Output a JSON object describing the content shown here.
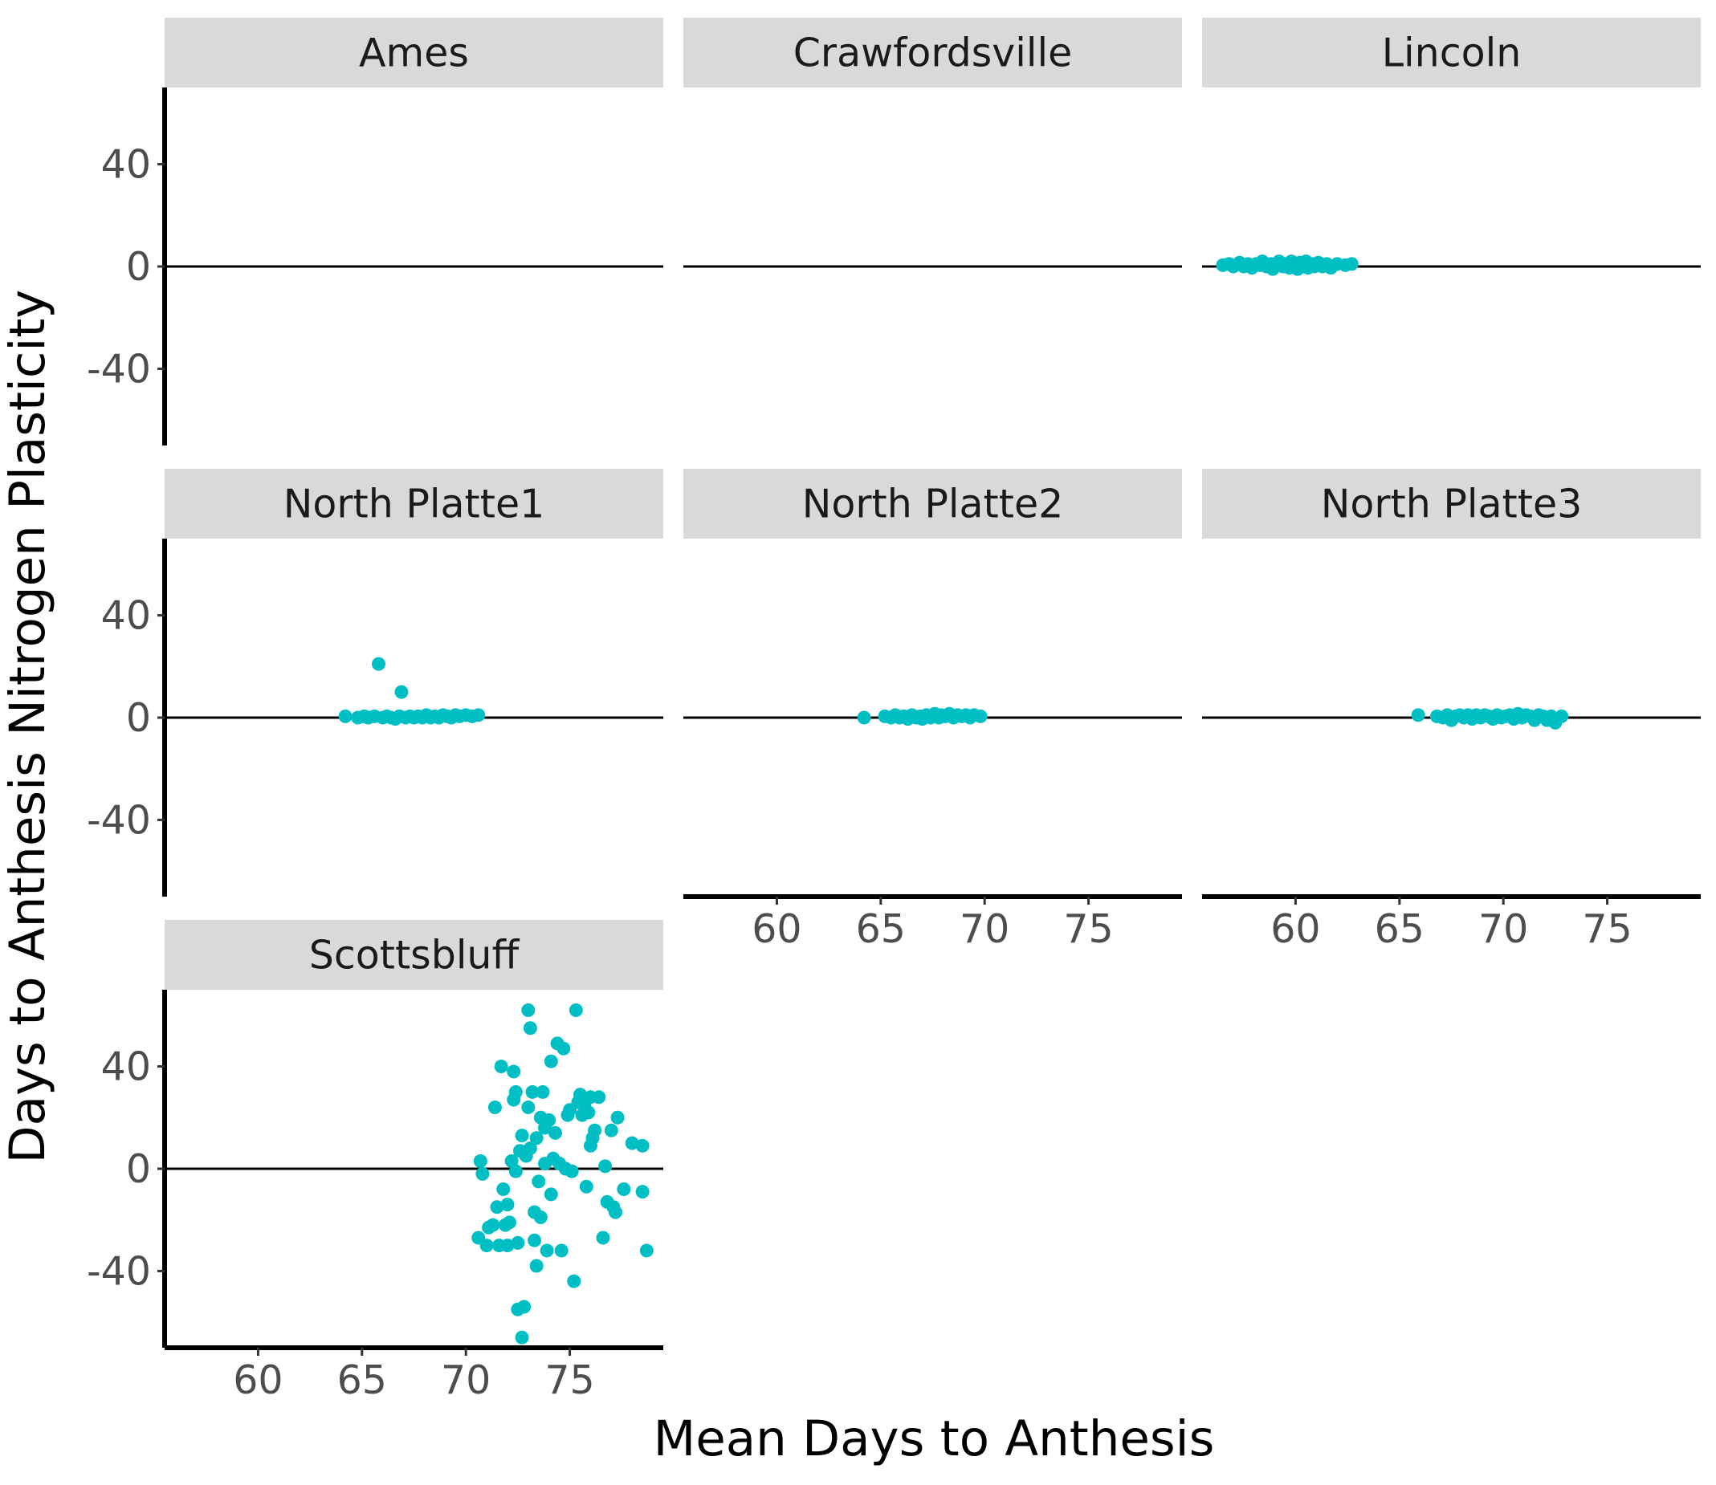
{
  "chart_data": {
    "type": "scatter",
    "facet_layout": "wrap",
    "xlabel": "Mean Days to Anthesis",
    "ylabel": "Days to Anthesis Nitrogen Plasticity",
    "xlim": [
      55.5,
      79.5
    ],
    "ylim": [
      -70,
      70
    ],
    "x_ticks": [
      60,
      65,
      70,
      75
    ],
    "y_ticks": [
      -40,
      0,
      40
    ],
    "reference_line_y": 0,
    "grid": false,
    "legend": "none",
    "point_color": "#00BFC4",
    "panels": [
      {
        "title": "Ames",
        "points": []
      },
      {
        "title": "Crawfordsville",
        "points": []
      },
      {
        "title": "Lincoln",
        "points": [
          [
            56.5,
            0.5
          ],
          [
            56.8,
            1
          ],
          [
            57.0,
            0
          ],
          [
            57.3,
            1.5
          ],
          [
            57.5,
            0
          ],
          [
            57.7,
            1
          ],
          [
            57.9,
            -0.5
          ],
          [
            58.1,
            1
          ],
          [
            58.3,
            0.5
          ],
          [
            58.4,
            2
          ],
          [
            58.6,
            0
          ],
          [
            58.8,
            1
          ],
          [
            58.9,
            -1
          ],
          [
            59.1,
            0.5
          ],
          [
            59.2,
            2
          ],
          [
            59.4,
            0
          ],
          [
            59.5,
            1
          ],
          [
            59.7,
            -0.5
          ],
          [
            59.8,
            2
          ],
          [
            60.0,
            0.5
          ],
          [
            60.1,
            -1
          ],
          [
            60.2,
            1.5
          ],
          [
            60.4,
            0
          ],
          [
            60.5,
            2
          ],
          [
            60.6,
            -0.5
          ],
          [
            60.8,
            1
          ],
          [
            60.9,
            0
          ],
          [
            61.1,
            1.5
          ],
          [
            61.3,
            0
          ],
          [
            61.5,
            1
          ],
          [
            61.7,
            -0.5
          ],
          [
            62.0,
            1
          ],
          [
            62.4,
            0.5
          ],
          [
            62.7,
            1
          ]
        ]
      },
      {
        "title": "North Platte1",
        "points": [
          [
            64.2,
            0.5
          ],
          [
            64.8,
            0
          ],
          [
            65.1,
            0.5
          ],
          [
            65.3,
            0
          ],
          [
            65.6,
            0.5
          ],
          [
            65.8,
            21
          ],
          [
            66.0,
            0
          ],
          [
            66.2,
            0.5
          ],
          [
            66.4,
            0
          ],
          [
            66.6,
            -0.5
          ],
          [
            66.8,
            0.5
          ],
          [
            66.9,
            10
          ],
          [
            67.1,
            0
          ],
          [
            67.3,
            0.5
          ],
          [
            67.5,
            0
          ],
          [
            67.7,
            0.5
          ],
          [
            67.9,
            0
          ],
          [
            68.1,
            1
          ],
          [
            68.3,
            0
          ],
          [
            68.5,
            0.5
          ],
          [
            68.7,
            0
          ],
          [
            68.9,
            1
          ],
          [
            69.1,
            0.5
          ],
          [
            69.3,
            0
          ],
          [
            69.5,
            1
          ],
          [
            69.7,
            0.5
          ],
          [
            70.0,
            1
          ],
          [
            70.3,
            0.5
          ],
          [
            70.6,
            1
          ]
        ]
      },
      {
        "title": "North Platte2",
        "points": [
          [
            64.2,
            0
          ],
          [
            65.2,
            0.5
          ],
          [
            65.5,
            0
          ],
          [
            65.7,
            1
          ],
          [
            65.9,
            0
          ],
          [
            66.1,
            0.5
          ],
          [
            66.3,
            -0.5
          ],
          [
            66.5,
            1
          ],
          [
            66.7,
            0
          ],
          [
            66.9,
            0.5
          ],
          [
            67.0,
            -0.5
          ],
          [
            67.2,
            1
          ],
          [
            67.4,
            0
          ],
          [
            67.6,
            1.5
          ],
          [
            67.8,
            0
          ],
          [
            67.9,
            1
          ],
          [
            68.1,
            0.5
          ],
          [
            68.3,
            1.5
          ],
          [
            68.5,
            0
          ],
          [
            68.7,
            1
          ],
          [
            68.9,
            0.5
          ],
          [
            69.1,
            1
          ],
          [
            69.3,
            0
          ],
          [
            69.5,
            1
          ],
          [
            69.8,
            0.5
          ]
        ]
      },
      {
        "title": "North Platte3",
        "points": [
          [
            65.9,
            1
          ],
          [
            66.8,
            0.5
          ],
          [
            67.1,
            0
          ],
          [
            67.3,
            1
          ],
          [
            67.5,
            -1
          ],
          [
            67.7,
            0.5
          ],
          [
            67.9,
            1
          ],
          [
            68.1,
            0
          ],
          [
            68.3,
            1
          ],
          [
            68.5,
            -0.5
          ],
          [
            68.7,
            1
          ],
          [
            68.9,
            0
          ],
          [
            69.1,
            1
          ],
          [
            69.3,
            0.5
          ],
          [
            69.5,
            -0.5
          ],
          [
            69.7,
            1
          ],
          [
            69.9,
            0
          ],
          [
            70.1,
            0.5
          ],
          [
            70.3,
            1
          ],
          [
            70.5,
            -0.5
          ],
          [
            70.7,
            1.5
          ],
          [
            70.9,
            0
          ],
          [
            71.1,
            1
          ],
          [
            71.3,
            0.5
          ],
          [
            71.5,
            -1
          ],
          [
            71.7,
            1
          ],
          [
            71.9,
            0.5
          ],
          [
            72.1,
            -1
          ],
          [
            72.3,
            0.5
          ],
          [
            72.5,
            -2
          ],
          [
            72.8,
            0.5
          ]
        ]
      },
      {
        "title": "Scottsbluff",
        "points": [
          [
            70.6,
            -27
          ],
          [
            70.7,
            3
          ],
          [
            70.8,
            -2
          ],
          [
            71.0,
            -30
          ],
          [
            71.1,
            -23
          ],
          [
            71.3,
            -22
          ],
          [
            71.4,
            24
          ],
          [
            71.5,
            -15
          ],
          [
            71.6,
            -30
          ],
          [
            71.7,
            40
          ],
          [
            71.8,
            -8
          ],
          [
            71.9,
            -22
          ],
          [
            72.0,
            -14
          ],
          [
            72.0,
            -30
          ],
          [
            72.1,
            -21
          ],
          [
            72.2,
            3
          ],
          [
            72.3,
            27
          ],
          [
            72.3,
            38
          ],
          [
            72.4,
            30
          ],
          [
            72.4,
            -1
          ],
          [
            72.5,
            -29
          ],
          [
            72.5,
            -55
          ],
          [
            72.6,
            7
          ],
          [
            72.7,
            -66
          ],
          [
            72.7,
            13
          ],
          [
            72.8,
            -54
          ],
          [
            72.9,
            5
          ],
          [
            73.0,
            24
          ],
          [
            73.0,
            62
          ],
          [
            73.1,
            55
          ],
          [
            73.1,
            8
          ],
          [
            73.2,
            30
          ],
          [
            73.3,
            -17
          ],
          [
            73.3,
            -28
          ],
          [
            73.4,
            -38
          ],
          [
            73.4,
            12
          ],
          [
            73.5,
            -5
          ],
          [
            73.6,
            20
          ],
          [
            73.6,
            -19
          ],
          [
            73.7,
            30
          ],
          [
            73.8,
            16
          ],
          [
            73.8,
            2
          ],
          [
            73.9,
            -32
          ],
          [
            74.0,
            19
          ],
          [
            74.1,
            -10
          ],
          [
            74.1,
            42
          ],
          [
            74.2,
            4
          ],
          [
            74.3,
            14
          ],
          [
            74.4,
            49
          ],
          [
            74.5,
            2
          ],
          [
            74.6,
            -32
          ],
          [
            74.7,
            47
          ],
          [
            74.8,
            0
          ],
          [
            74.9,
            21
          ],
          [
            75.0,
            23
          ],
          [
            75.1,
            -1
          ],
          [
            75.2,
            -44
          ],
          [
            75.3,
            62
          ],
          [
            75.4,
            26
          ],
          [
            75.5,
            29
          ],
          [
            75.6,
            21
          ],
          [
            75.7,
            25
          ],
          [
            75.8,
            -7
          ],
          [
            75.9,
            22
          ],
          [
            76.0,
            28
          ],
          [
            76.0,
            9
          ],
          [
            76.1,
            12
          ],
          [
            76.2,
            15
          ],
          [
            76.4,
            28
          ],
          [
            76.6,
            -27
          ],
          [
            76.7,
            1
          ],
          [
            76.8,
            -13
          ],
          [
            77.0,
            15
          ],
          [
            77.1,
            -15
          ],
          [
            77.2,
            -17
          ],
          [
            77.3,
            20
          ],
          [
            77.6,
            -8
          ],
          [
            78.0,
            10
          ],
          [
            78.5,
            -9
          ],
          [
            78.5,
            9
          ],
          [
            78.7,
            -32
          ]
        ]
      }
    ]
  }
}
